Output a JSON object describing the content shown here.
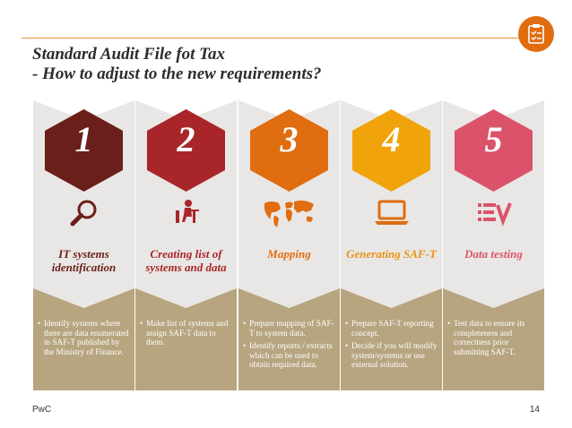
{
  "slide": {
    "title_line1": "Standard Audit File fot Tax",
    "title_line2": "- How to adjust to the new requirements?",
    "footer_brand": "PwC",
    "page_number": "14"
  },
  "colors": {
    "accent": "#e06d10",
    "step1": "#6b1f1a",
    "step2": "#a8262a",
    "step3": "#e06d10",
    "step4": "#f0a30a",
    "step5": "#db536a",
    "bottom_panel": "#b7a580",
    "chevron": "#e9e7e5",
    "label_color": "#e06d10"
  },
  "steps": [
    {
      "number": "1",
      "icon": "magnifier-icon",
      "label": "IT systems identification",
      "bullets": [
        "Identify systems where there are data enumerated in SAF-T published by the Ministry of Finance."
      ]
    },
    {
      "number": "2",
      "icon": "person-at-desk-icon",
      "label": "Creating list of systems and data",
      "bullets": [
        "Make list of systems and assign SAF-T data to them."
      ]
    },
    {
      "number": "3",
      "icon": "world-map-icon",
      "label": "Mapping",
      "bullets": [
        "Prepare mapping of SAF-T to system data.",
        "Identify reports / extracts which can be used to obtain required data."
      ]
    },
    {
      "number": "4",
      "icon": "laptop-icon",
      "label": "Generating SAF-T",
      "bullets": [
        "Prepare SAF-T reporting concept.",
        "Decide if you will modify system/systems or use external solution."
      ]
    },
    {
      "number": "5",
      "icon": "checklist-icon",
      "label": "Data testing",
      "bullets": [
        "Test data to ensure its completeness and correctness prior submitting SAF-T."
      ]
    }
  ]
}
